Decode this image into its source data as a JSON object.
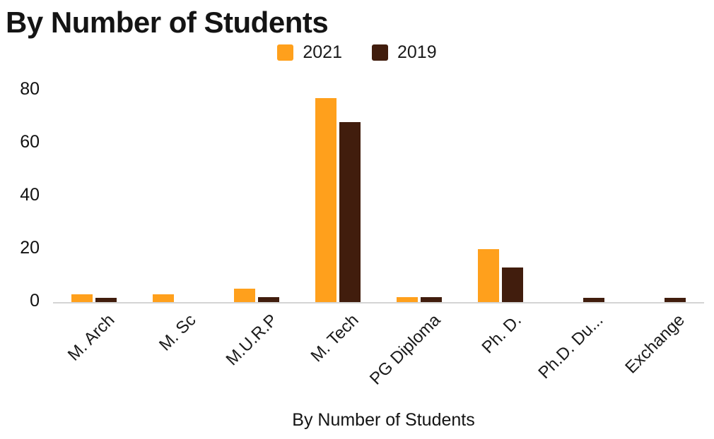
{
  "title": "By Number of Students",
  "xlabel": "By Number of Students",
  "colors": {
    "series_2021": "#FFA01C",
    "series_2019": "#411D0D",
    "axis_line": "#d4d4d4"
  },
  "chart_data": {
    "type": "bar",
    "title": "By Number of Students",
    "xlabel": "By Number of Students",
    "ylabel": "",
    "categories": [
      "M. Arch",
      "M. Sc",
      "M.U.R.P",
      "M. Tech",
      "PG Diploma",
      "Ph. D.",
      "Ph.D. Du...",
      "Exchange"
    ],
    "series": [
      {
        "name": "2021",
        "color": "#FFA01C",
        "values": [
          3,
          3,
          5,
          77,
          2,
          20,
          0,
          0
        ]
      },
      {
        "name": "2019",
        "color": "#411D0D",
        "values": [
          1.5,
          0,
          2,
          68,
          2,
          13,
          1.5,
          1.5
        ]
      }
    ],
    "ylim": [
      0,
      80
    ],
    "yticks": [
      0,
      20,
      40,
      60,
      80
    ],
    "grid": false,
    "legend_position": "top"
  }
}
